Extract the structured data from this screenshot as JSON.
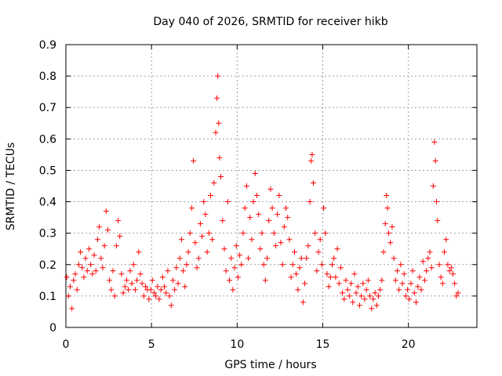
{
  "chart_data": {
    "type": "scatter",
    "title": "Day 040 of 2026, SRMTID for receiver hikb",
    "xlabel": "GPS time / hours",
    "ylabel": "SRMTID / TECUs",
    "xlim": [
      0,
      24
    ],
    "ylim": [
      0,
      0.9
    ],
    "xticks": [
      0,
      5,
      10,
      15,
      20
    ],
    "xtick_labels": [
      "0",
      "5",
      "10",
      "15",
      "20"
    ],
    "yticks": [
      0,
      0.1,
      0.2,
      0.3,
      0.4,
      0.5,
      0.6,
      0.7,
      0.8,
      0.9
    ],
    "ytick_labels": [
      "0",
      "0.1",
      "0.2",
      "0.3",
      "0.4",
      "0.5",
      "0.6",
      "0.7",
      "0.8",
      "0.9"
    ],
    "grid": true,
    "marker": "+",
    "series": [
      {
        "name": "hikb",
        "color": "#ff0000",
        "points": [
          [
            0.05,
            0.16
          ],
          [
            0.15,
            0.1
          ],
          [
            0.25,
            0.13
          ],
          [
            0.35,
            0.06
          ],
          [
            0.45,
            0.15
          ],
          [
            0.55,
            0.17
          ],
          [
            0.65,
            0.12
          ],
          [
            0.75,
            0.2
          ],
          [
            0.85,
            0.24
          ],
          [
            0.95,
            0.19
          ],
          [
            1.05,
            0.16
          ],
          [
            1.15,
            0.22
          ],
          [
            1.25,
            0.18
          ],
          [
            1.35,
            0.25
          ],
          [
            1.45,
            0.2
          ],
          [
            1.55,
            0.17
          ],
          [
            1.65,
            0.23
          ],
          [
            1.75,
            0.18
          ],
          [
            1.85,
            0.28
          ],
          [
            1.95,
            0.32
          ],
          [
            2.05,
            0.22
          ],
          [
            2.15,
            0.19
          ],
          [
            2.25,
            0.26
          ],
          [
            2.35,
            0.37
          ],
          [
            2.45,
            0.31
          ],
          [
            2.55,
            0.15
          ],
          [
            2.65,
            0.12
          ],
          [
            2.75,
            0.18
          ],
          [
            2.85,
            0.1
          ],
          [
            2.95,
            0.26
          ],
          [
            3.05,
            0.34
          ],
          [
            3.15,
            0.29
          ],
          [
            3.25,
            0.17
          ],
          [
            3.35,
            0.11
          ],
          [
            3.45,
            0.13
          ],
          [
            3.55,
            0.15
          ],
          [
            3.65,
            0.12
          ],
          [
            3.75,
            0.18
          ],
          [
            3.85,
            0.14
          ],
          [
            3.95,
            0.2
          ],
          [
            4.05,
            0.12
          ],
          [
            4.15,
            0.15
          ],
          [
            4.25,
            0.24
          ],
          [
            4.35,
            0.17
          ],
          [
            4.45,
            0.14
          ],
          [
            4.55,
            0.1
          ],
          [
            4.65,
            0.13
          ],
          [
            4.75,
            0.12
          ],
          [
            4.85,
            0.09
          ],
          [
            4.95,
            0.12
          ],
          [
            5.05,
            0.15
          ],
          [
            5.15,
            0.11
          ],
          [
            5.25,
            0.1
          ],
          [
            5.35,
            0.13
          ],
          [
            5.45,
            0.09
          ],
          [
            5.55,
            0.12
          ],
          [
            5.65,
            0.16
          ],
          [
            5.75,
            0.13
          ],
          [
            5.85,
            0.11
          ],
          [
            5.95,
            0.18
          ],
          [
            6.05,
            0.1
          ],
          [
            6.15,
            0.07
          ],
          [
            6.25,
            0.15
          ],
          [
            6.35,
            0.12
          ],
          [
            6.45,
            0.19
          ],
          [
            6.55,
            0.14
          ],
          [
            6.65,
            0.22
          ],
          [
            6.75,
            0.28
          ],
          [
            6.85,
            0.18
          ],
          [
            6.95,
            0.13
          ],
          [
            7.05,
            0.2
          ],
          [
            7.15,
            0.24
          ],
          [
            7.25,
            0.3
          ],
          [
            7.35,
            0.38
          ],
          [
            7.45,
            0.53
          ],
          [
            7.55,
            0.27
          ],
          [
            7.65,
            0.19
          ],
          [
            7.75,
            0.22
          ],
          [
            7.85,
            0.33
          ],
          [
            7.95,
            0.29
          ],
          [
            8.05,
            0.4
          ],
          [
            8.15,
            0.36
          ],
          [
            8.25,
            0.24
          ],
          [
            8.35,
            0.3
          ],
          [
            8.45,
            0.42
          ],
          [
            8.55,
            0.28
          ],
          [
            8.65,
            0.46
          ],
          [
            8.75,
            0.62
          ],
          [
            8.82,
            0.73
          ],
          [
            8.87,
            0.8
          ],
          [
            8.92,
            0.65
          ],
          [
            8.97,
            0.54
          ],
          [
            9.05,
            0.48
          ],
          [
            9.15,
            0.34
          ],
          [
            9.25,
            0.25
          ],
          [
            9.35,
            0.18
          ],
          [
            9.45,
            0.4
          ],
          [
            9.55,
            0.15
          ],
          [
            9.65,
            0.22
          ],
          [
            9.75,
            0.12
          ],
          [
            9.85,
            0.19
          ],
          [
            9.95,
            0.26
          ],
          [
            10.05,
            0.16
          ],
          [
            10.15,
            0.23
          ],
          [
            10.25,
            0.2
          ],
          [
            10.35,
            0.3
          ],
          [
            10.45,
            0.38
          ],
          [
            10.55,
            0.45
          ],
          [
            10.65,
            0.22
          ],
          [
            10.75,
            0.35
          ],
          [
            10.85,
            0.28
          ],
          [
            10.95,
            0.4
          ],
          [
            11.05,
            0.49
          ],
          [
            11.15,
            0.42
          ],
          [
            11.25,
            0.36
          ],
          [
            11.35,
            0.25
          ],
          [
            11.45,
            0.3
          ],
          [
            11.55,
            0.2
          ],
          [
            11.65,
            0.15
          ],
          [
            11.75,
            0.22
          ],
          [
            11.85,
            0.34
          ],
          [
            11.95,
            0.44
          ],
          [
            12.05,
            0.38
          ],
          [
            12.15,
            0.3
          ],
          [
            12.25,
            0.26
          ],
          [
            12.35,
            0.36
          ],
          [
            12.45,
            0.42
          ],
          [
            12.55,
            0.27
          ],
          [
            12.65,
            0.2
          ],
          [
            12.75,
            0.32
          ],
          [
            12.85,
            0.38
          ],
          [
            12.95,
            0.35
          ],
          [
            13.05,
            0.28
          ],
          [
            13.15,
            0.16
          ],
          [
            13.25,
            0.2
          ],
          [
            13.35,
            0.24
          ],
          [
            13.45,
            0.17
          ],
          [
            13.55,
            0.12
          ],
          [
            13.65,
            0.19
          ],
          [
            13.75,
            0.22
          ],
          [
            13.85,
            0.08
          ],
          [
            13.95,
            0.14
          ],
          [
            14.05,
            0.22
          ],
          [
            14.15,
            0.26
          ],
          [
            14.25,
            0.4
          ],
          [
            14.32,
            0.53
          ],
          [
            14.38,
            0.55
          ],
          [
            14.45,
            0.46
          ],
          [
            14.55,
            0.3
          ],
          [
            14.65,
            0.18
          ],
          [
            14.75,
            0.24
          ],
          [
            14.85,
            0.28
          ],
          [
            14.95,
            0.2
          ],
          [
            15.05,
            0.38
          ],
          [
            15.15,
            0.3
          ],
          [
            15.25,
            0.17
          ],
          [
            15.35,
            0.13
          ],
          [
            15.45,
            0.16
          ],
          [
            15.55,
            0.2
          ],
          [
            15.65,
            0.22
          ],
          [
            15.75,
            0.16
          ],
          [
            15.85,
            0.25
          ],
          [
            15.95,
            0.14
          ],
          [
            16.05,
            0.19
          ],
          [
            16.15,
            0.11
          ],
          [
            16.25,
            0.09
          ],
          [
            16.35,
            0.15
          ],
          [
            16.45,
            0.12
          ],
          [
            16.55,
            0.1
          ],
          [
            16.65,
            0.14
          ],
          [
            16.75,
            0.08
          ],
          [
            16.85,
            0.17
          ],
          [
            16.95,
            0.11
          ],
          [
            17.05,
            0.13
          ],
          [
            17.15,
            0.07
          ],
          [
            17.25,
            0.1
          ],
          [
            17.35,
            0.14
          ],
          [
            17.45,
            0.09
          ],
          [
            17.55,
            0.12
          ],
          [
            17.65,
            0.15
          ],
          [
            17.75,
            0.1
          ],
          [
            17.85,
            0.06
          ],
          [
            17.95,
            0.09
          ],
          [
            18.05,
            0.11
          ],
          [
            18.15,
            0.07
          ],
          [
            18.25,
            0.1
          ],
          [
            18.35,
            0.12
          ],
          [
            18.45,
            0.15
          ],
          [
            18.55,
            0.24
          ],
          [
            18.65,
            0.33
          ],
          [
            18.72,
            0.42
          ],
          [
            18.78,
            0.38
          ],
          [
            18.85,
            0.3
          ],
          [
            18.95,
            0.27
          ],
          [
            19.05,
            0.32
          ],
          [
            19.15,
            0.22
          ],
          [
            19.25,
            0.15
          ],
          [
            19.35,
            0.18
          ],
          [
            19.45,
            0.12
          ],
          [
            19.55,
            0.2
          ],
          [
            19.65,
            0.14
          ],
          [
            19.75,
            0.17
          ],
          [
            19.85,
            0.1
          ],
          [
            19.95,
            0.12
          ],
          [
            20.05,
            0.09
          ],
          [
            20.15,
            0.14
          ],
          [
            20.25,
            0.18
          ],
          [
            20.35,
            0.11
          ],
          [
            20.45,
            0.08
          ],
          [
            20.55,
            0.13
          ],
          [
            20.65,
            0.16
          ],
          [
            20.75,
            0.12
          ],
          [
            20.85,
            0.21
          ],
          [
            20.95,
            0.15
          ],
          [
            21.05,
            0.18
          ],
          [
            21.15,
            0.22
          ],
          [
            21.25,
            0.24
          ],
          [
            21.35,
            0.19
          ],
          [
            21.45,
            0.45
          ],
          [
            21.52,
            0.59
          ],
          [
            21.58,
            0.53
          ],
          [
            21.64,
            0.4
          ],
          [
            21.7,
            0.34
          ],
          [
            21.8,
            0.2
          ],
          [
            21.9,
            0.16
          ],
          [
            22.0,
            0.14
          ],
          [
            22.1,
            0.24
          ],
          [
            22.2,
            0.28
          ],
          [
            22.3,
            0.2
          ],
          [
            22.4,
            0.18
          ],
          [
            22.5,
            0.19
          ],
          [
            22.6,
            0.17
          ],
          [
            22.7,
            0.14
          ],
          [
            22.8,
            0.1
          ],
          [
            22.9,
            0.11
          ]
        ]
      }
    ]
  }
}
